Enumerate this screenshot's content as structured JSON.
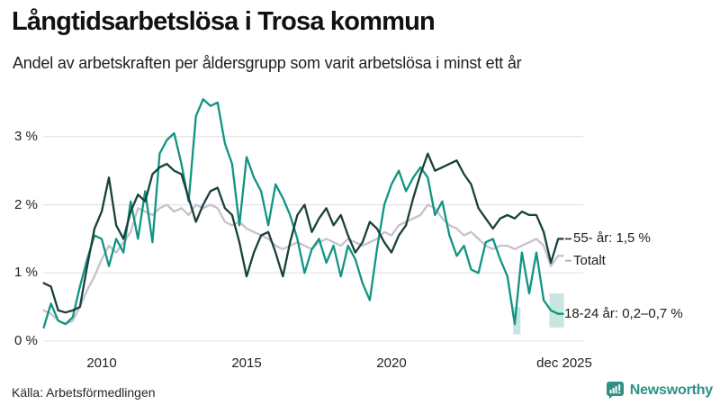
{
  "header": {
    "title": "Långtidsarbetslösa i Trosa kommun",
    "subtitle": "Andel av arbetskraften per åldersgrupp som varit arbetslösa i minst ett år"
  },
  "footer": {
    "source": "Källa: Arbetsförmedlingen",
    "brand": "Newsworthy"
  },
  "colors": {
    "series_18_24": "#119482",
    "series_55": "#19413a",
    "series_total": "#c5c2ce",
    "band": "#aedcd2",
    "grid": "#e6e5ea",
    "brand_teal": "#2d9186"
  },
  "chart_data": {
    "type": "line",
    "title": "Långtidsarbetslösa i Trosa kommun",
    "subtitle": "Andel av arbetskraften per åldersgrupp som varit arbetslösa i minst ett år",
    "unit": "% av arbetskraften",
    "grid": true,
    "x_axis": {
      "range": [
        2008,
        2026
      ],
      "ticks": [
        {
          "label": "2010",
          "value": 2010
        },
        {
          "label": "2015",
          "value": 2015
        },
        {
          "label": "2020",
          "value": 2020
        },
        {
          "label": "dec 2025",
          "value": 2025.92
        }
      ]
    },
    "y_axis": {
      "range": [
        0,
        3.6
      ],
      "ticks": [
        {
          "label": "0 %",
          "value": 0
        },
        {
          "label": "1 %",
          "value": 1
        },
        {
          "label": "2 %",
          "value": 2
        },
        {
          "label": "3 %",
          "value": 3
        }
      ]
    },
    "x": [
      2008,
      2008.25,
      2008.5,
      2008.75,
      2009,
      2009.25,
      2009.5,
      2009.75,
      2010,
      2010.25,
      2010.5,
      2010.75,
      2011,
      2011.25,
      2011.5,
      2011.75,
      2012,
      2012.25,
      2012.5,
      2012.75,
      2013,
      2013.25,
      2013.5,
      2013.75,
      2014,
      2014.25,
      2014.5,
      2014.75,
      2015,
      2015.25,
      2015.5,
      2015.75,
      2016,
      2016.25,
      2016.5,
      2016.75,
      2017,
      2017.25,
      2017.5,
      2017.75,
      2018,
      2018.25,
      2018.5,
      2018.75,
      2019,
      2019.25,
      2019.5,
      2019.75,
      2020,
      2020.25,
      2020.5,
      2020.75,
      2021,
      2021.25,
      2021.5,
      2021.75,
      2022,
      2022.25,
      2022.5,
      2022.75,
      2023,
      2023.25,
      2023.5,
      2023.75,
      2024,
      2024.25,
      2024.5,
      2024.75,
      2025,
      2025.25,
      2025.5,
      2025.75,
      2025.92
    ],
    "series": [
      {
        "name": "Totalt",
        "color": "#c5c2ce",
        "z": 0,
        "values": [
          0.45,
          0.4,
          0.3,
          0.25,
          0.3,
          0.5,
          0.75,
          0.95,
          1.2,
          1.4,
          1.3,
          1.45,
          1.6,
          1.95,
          1.9,
          1.85,
          1.95,
          2.0,
          1.9,
          1.95,
          1.85,
          2.0,
          1.95,
          2.0,
          1.95,
          1.75,
          1.7,
          1.75,
          1.65,
          1.6,
          1.55,
          1.5,
          1.4,
          1.35,
          1.4,
          1.45,
          1.4,
          1.35,
          1.45,
          1.5,
          1.45,
          1.4,
          1.5,
          1.45,
          1.4,
          1.45,
          1.5,
          1.6,
          1.55,
          1.7,
          1.75,
          1.8,
          1.85,
          2.0,
          1.95,
          1.8,
          1.7,
          1.65,
          1.55,
          1.6,
          1.5,
          1.4,
          1.35,
          1.4,
          1.4,
          1.35,
          1.4,
          1.45,
          1.5,
          1.4,
          1.1,
          1.25,
          1.25
        ]
      },
      {
        "name": "18-24 år",
        "color": "#119482",
        "z": 1,
        "values": [
          0.2,
          0.55,
          0.3,
          0.25,
          0.35,
          0.8,
          1.2,
          1.55,
          1.5,
          1.1,
          1.5,
          1.3,
          2.05,
          1.5,
          2.2,
          1.45,
          2.75,
          2.95,
          3.05,
          2.6,
          2.05,
          3.3,
          3.55,
          3.45,
          3.5,
          2.9,
          2.6,
          1.7,
          2.7,
          2.4,
          2.2,
          1.7,
          2.3,
          2.1,
          1.85,
          1.5,
          1.0,
          1.35,
          1.5,
          1.15,
          1.4,
          0.95,
          1.4,
          1.2,
          0.85,
          0.6,
          1.35,
          2.0,
          2.3,
          2.5,
          2.2,
          2.4,
          2.55,
          2.4,
          1.85,
          2.05,
          1.55,
          1.25,
          1.4,
          1.05,
          1.0,
          1.45,
          1.5,
          1.2,
          0.95,
          0.25,
          1.3,
          0.7,
          1.3,
          0.6,
          0.45,
          0.4,
          0.4
        ]
      },
      {
        "name": "55- år",
        "color": "#19413a",
        "z": 2,
        "values": [
          0.85,
          0.8,
          0.45,
          0.42,
          0.45,
          0.5,
          1.1,
          1.65,
          1.9,
          2.4,
          1.7,
          1.5,
          1.9,
          2.15,
          2.05,
          2.45,
          2.55,
          2.6,
          2.5,
          2.45,
          2.1,
          1.75,
          2.0,
          2.2,
          2.25,
          1.95,
          1.85,
          1.45,
          0.95,
          1.3,
          1.55,
          1.6,
          1.3,
          0.95,
          1.45,
          1.85,
          2.0,
          1.6,
          1.8,
          1.95,
          1.7,
          1.85,
          1.55,
          1.3,
          1.45,
          1.75,
          1.65,
          1.45,
          1.3,
          1.55,
          1.7,
          2.1,
          2.45,
          2.75,
          2.5,
          2.55,
          2.6,
          2.65,
          2.45,
          2.3,
          1.95,
          1.8,
          1.65,
          1.8,
          1.85,
          1.8,
          1.9,
          1.85,
          1.85,
          1.6,
          1.15,
          1.5,
          1.5
        ]
      }
    ],
    "uncertainty_bands": [
      {
        "series": "18-24 år",
        "x_start": 2024.2,
        "x_end": 2024.45,
        "low": 0.1,
        "high": 0.5
      },
      {
        "series": "18-24 år",
        "x_start": 2025.45,
        "x_end": 2025.95,
        "low": 0.2,
        "high": 0.7
      }
    ],
    "end_labels": [
      {
        "text": "55- år: 1,5 %",
        "value": 1.5,
        "dash_color": "#333333"
      },
      {
        "text": "Totalt",
        "value": 1.18,
        "dash_color": "#a9a6b4"
      },
      {
        "text": "18-24 år: 0,2–0,7 %",
        "value": 0.4,
        "dash_color": null
      }
    ]
  }
}
